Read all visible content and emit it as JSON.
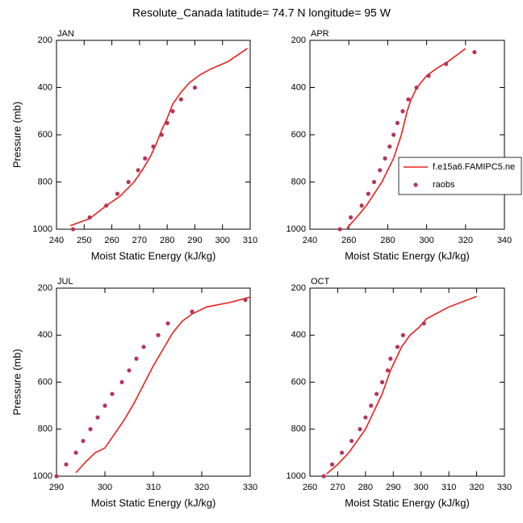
{
  "title": "Resolute_Canada  latitude= 74.7 N longitude= 95 W",
  "chart_data": [
    {
      "type": "line",
      "title": "JAN",
      "xlabel": "Moist Static Energy (kJ/kg)",
      "ylabel": "Pressure (mb)",
      "xlim": [
        240,
        310
      ],
      "xticks": [
        240,
        250,
        260,
        270,
        280,
        290,
        300,
        310
      ],
      "ylim": [
        200,
        1000
      ],
      "y_reversed": true,
      "yticks": [
        200,
        400,
        600,
        800,
        1000
      ],
      "series": [
        {
          "style": "line",
          "color": "#e8201c",
          "x": [
            245,
            252,
            258,
            263,
            268,
            271,
            274,
            276,
            278,
            280,
            282,
            285,
            288,
            292,
            296,
            302,
            309
          ],
          "y": [
            985,
            955,
            900,
            860,
            800,
            750,
            690,
            640,
            580,
            530,
            470,
            420,
            380,
            345,
            320,
            290,
            234
          ]
        },
        {
          "style": "markers",
          "color": "#b5365a",
          "x": [
            246,
            252,
            258,
            262,
            266,
            269.5,
            272,
            275,
            278,
            280,
            282,
            285,
            290
          ],
          "y": [
            1000,
            950,
            900,
            850,
            800,
            750,
            700,
            650,
            600,
            550,
            500,
            450,
            400
          ]
        }
      ]
    },
    {
      "type": "line",
      "title": "APR",
      "xlabel": "Moist Static Energy (kJ/kg)",
      "xlim": [
        240,
        340
      ],
      "xticks": [
        240,
        260,
        280,
        300,
        320,
        340
      ],
      "ylim": [
        200,
        1000
      ],
      "y_reversed": true,
      "yticks": [
        200,
        400,
        600,
        800,
        1000
      ],
      "legend": "right",
      "series": [
        {
          "name": "f.e15a6.FAMIPC5.ne",
          "style": "line",
          "color": "#e8201c",
          "x": [
            259,
            264,
            269,
            273,
            277,
            280,
            283,
            285,
            287,
            288.5,
            290,
            292,
            295,
            300,
            305,
            311,
            320
          ],
          "y": [
            996,
            950,
            900,
            850,
            800,
            750,
            700,
            650,
            600,
            550,
            500,
            450,
            400,
            350,
            320,
            290,
            235
          ]
        },
        {
          "name": "raobs",
          "style": "markers",
          "color": "#b5365a",
          "x": [
            255.4,
            261,
            266.6,
            270,
            273,
            276,
            278.6,
            281,
            283,
            285,
            287.7,
            290.6,
            294.8,
            301,
            310,
            324.6
          ],
          "y": [
            1000,
            950,
            900,
            850,
            800,
            750,
            700,
            650,
            600,
            550,
            500,
            450,
            400,
            350,
            300,
            250
          ]
        }
      ]
    },
    {
      "type": "line",
      "title": "JUL",
      "xlabel": "Moist Static Energy (kJ/kg)",
      "ylabel": "Pressure (mb)",
      "xlim": [
        290,
        330
      ],
      "xticks": [
        290,
        300,
        310,
        320,
        330
      ],
      "ylim": [
        200,
        1000
      ],
      "y_reversed": true,
      "yticks": [
        200,
        400,
        600,
        800,
        1000
      ],
      "series": [
        {
          "style": "line",
          "color": "#e8201c",
          "x": [
            294,
            296,
            298,
            300,
            302,
            304,
            306,
            308,
            310,
            312,
            314,
            316,
            318,
            321,
            326,
            330
          ],
          "y": [
            985,
            940,
            900,
            880,
            820,
            760,
            690,
            610,
            530,
            460,
            390,
            340,
            310,
            280,
            260,
            238
          ]
        },
        {
          "style": "markers",
          "color": "#b5365a",
          "x": [
            290,
            292,
            294,
            295.5,
            297,
            298.5,
            300,
            301.5,
            303.5,
            305,
            306.5,
            308,
            311,
            313,
            318,
            329
          ],
          "y": [
            1000,
            950,
            900,
            850,
            800,
            750,
            700,
            650,
            600,
            550,
            500,
            450,
            400,
            350,
            300,
            250
          ]
        }
      ]
    },
    {
      "type": "line",
      "title": "OCT",
      "xlabel": "Moist Static Energy (kJ/kg)",
      "xlim": [
        260,
        330
      ],
      "xticks": [
        260,
        270,
        280,
        290,
        300,
        310,
        320,
        330
      ],
      "ylim": [
        200,
        1000
      ],
      "y_reversed": true,
      "yticks": [
        200,
        400,
        600,
        800,
        1000
      ],
      "series": [
        {
          "style": "line",
          "color": "#e8201c",
          "x": [
            266,
            270,
            274,
            277,
            280,
            282,
            284,
            286,
            287.5,
            289,
            291,
            293,
            296,
            299,
            302,
            310,
            320
          ],
          "y": [
            990,
            950,
            900,
            850,
            800,
            750,
            700,
            650,
            600,
            550,
            500,
            450,
            400,
            370,
            330,
            280,
            235
          ]
        },
        {
          "style": "markers",
          "color": "#b5365a",
          "x": [
            265,
            268,
            271.5,
            275,
            278,
            280,
            282,
            284,
            286,
            288,
            289,
            291.5,
            293.5,
            301
          ],
          "y": [
            1000,
            950,
            900,
            850,
            800,
            750,
            700,
            650,
            600,
            550,
            500,
            450,
            400,
            350
          ]
        }
      ]
    }
  ]
}
